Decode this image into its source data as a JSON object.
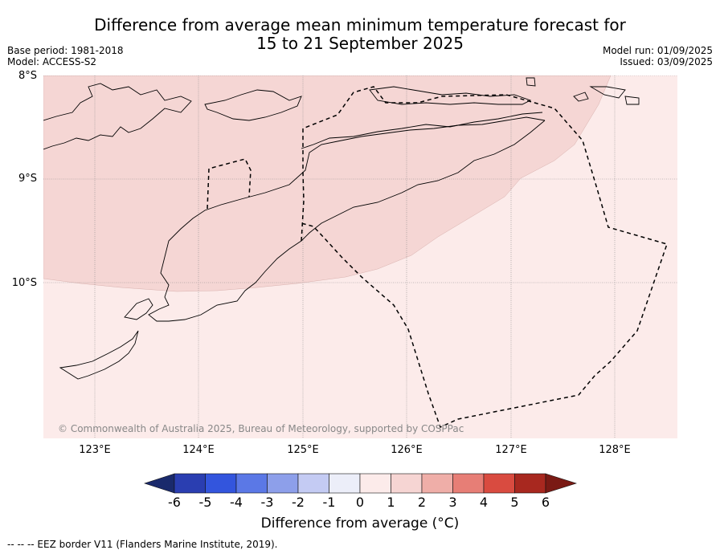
{
  "title_line1": "Difference from average mean minimum temperature forecast for",
  "title_line2": "15 to 21 September 2025",
  "base_period": "Base period: 1981-2018",
  "model": "Model: ACCESS-S2",
  "model_run": "Model run: 01/09/2025",
  "issued": "Issued: 03/09/2025",
  "attribution": "© Commonwealth of Australia 2025, Bureau of Meteorology, supported by COSPPac",
  "footer": "--  --  -- EEZ border V11 (Flanders Marine Institute, 2019).",
  "lat_labels": [
    "8°S",
    "9°S",
    "10°S"
  ],
  "lon_labels": [
    "123°E",
    "124°E",
    "125°E",
    "126°E",
    "127°E",
    "128°E"
  ],
  "colorbar": {
    "title": "Difference from average (°C)",
    "ticks": [
      "-6",
      "-5",
      "-4",
      "-3",
      "-2",
      "-1",
      "0",
      "1",
      "2",
      "3",
      "4",
      "5",
      "6"
    ],
    "colors": [
      "#1a2a6c",
      "#2a3eb1",
      "#3355dd",
      "#5b78e6",
      "#8d9fea",
      "#c4cbf3",
      "#eceef9",
      "#fcebea",
      "#f6d5d3",
      "#efaea8",
      "#e77e76",
      "#d94b40",
      "#a8281f",
      "#7a1a14"
    ]
  },
  "map_legend": {
    "zone_1_2_color": "#f5d6d4",
    "zone_0_1_color": "#fcebea"
  }
}
